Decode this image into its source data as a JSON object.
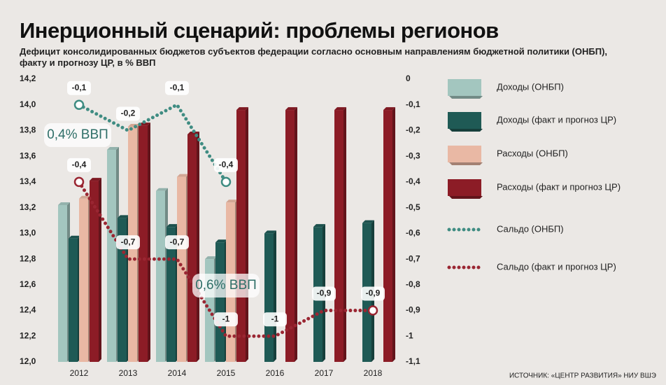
{
  "chart_data": {
    "type": "bar",
    "title": "Инерционный сценарий: проблемы регионов",
    "subtitle": "Дефицит консолидированных бюджетов субъектов федерации согласно основным направлениям бюджетной политики (ОНБП), факту и прогнозу ЦР, в % ВВП",
    "source": "ИСТОЧНИК: «ЦЕНТР РАЗВИТИЯ» НИУ ВШЭ",
    "categories": [
      "2012",
      "2013",
      "2014",
      "2015",
      "2016",
      "2017",
      "2018"
    ],
    "ylim": [
      12.0,
      14.2
    ],
    "yticks": [
      {
        "value": 12.0,
        "label": "12,0"
      },
      {
        "value": 12.2,
        "label": "12,2"
      },
      {
        "value": 12.4,
        "label": "12,4"
      },
      {
        "value": 12.6,
        "label": "12,6"
      },
      {
        "value": 12.8,
        "label": "12,8"
      },
      {
        "value": 13.0,
        "label": "13,0"
      },
      {
        "value": 13.2,
        "label": "13,2"
      },
      {
        "value": 13.4,
        "label": "13,4"
      },
      {
        "value": 13.6,
        "label": "13,6"
      },
      {
        "value": 13.8,
        "label": "13,8"
      },
      {
        "value": 14.0,
        "label": "14,0"
      },
      {
        "value": 14.2,
        "label": "14,2"
      }
    ],
    "y2lim": [
      -1.1,
      0
    ],
    "y2ticks": [
      0,
      {
        "value": -0.1,
        "label": "-0,1"
      },
      {
        "value": -0.2,
        "label": "-0,2"
      },
      {
        "value": -0.3,
        "label": "-0,3"
      },
      {
        "value": -0.4,
        "label": "-0,4"
      },
      {
        "value": -0.5,
        "label": "-0,5"
      },
      {
        "value": -0.6,
        "label": "-0,6"
      },
      {
        "value": -0.7,
        "label": "-0,7"
      },
      {
        "value": -0.8,
        "label": "-0,8"
      },
      {
        "value": -0.9,
        "label": "-0,9"
      },
      -1,
      {
        "value": -1.1,
        "label": "-1,1"
      }
    ],
    "grid": false,
    "series": [
      {
        "name": "Доходы (ОНБП)",
        "type": "bar",
        "color": "#a3c6bf",
        "values": [
          13.22,
          13.65,
          13.33,
          12.8,
          null,
          null,
          null
        ]
      },
      {
        "name": "Доходы (факт и прогноз ЦР)",
        "type": "bar",
        "color": "#1f5a55",
        "values": [
          12.96,
          13.12,
          13.05,
          12.93,
          13.0,
          13.05,
          13.08
        ]
      },
      {
        "name": "Расходы (ОНБП)",
        "type": "bar",
        "color": "#e9b8a4",
        "values": [
          13.27,
          13.83,
          13.44,
          13.24,
          null,
          null,
          null
        ]
      },
      {
        "name": "Расходы (факт и прогноз ЦР)",
        "type": "bar",
        "color": "#8c1c26",
        "values": [
          13.41,
          13.84,
          13.77,
          13.96,
          13.96,
          13.96,
          13.96
        ]
      },
      {
        "name": "Сальдо (ОНБП)",
        "type": "line",
        "axis": "y2",
        "color": "#3f8c82",
        "values": [
          -0.1,
          -0.2,
          -0.1,
          -0.4,
          null,
          null,
          null
        ],
        "value_labels": [
          "-0,1",
          "-0,2",
          "-0,1",
          "-0,4",
          null,
          null,
          null
        ]
      },
      {
        "name": "Сальдо (факт и прогноз ЦР)",
        "type": "line",
        "axis": "y2",
        "color": "#9a2632",
        "values": [
          -0.4,
          -0.7,
          -0.7,
          -1,
          -1,
          -0.9,
          -0.9
        ],
        "value_labels": [
          "-0,4",
          "-0,7",
          "-0,7",
          "-1",
          "-1",
          "-0,9",
          "-0,9"
        ]
      }
    ],
    "annotations": [
      "0,4% ВВП",
      "0,6% ВВП"
    ]
  }
}
